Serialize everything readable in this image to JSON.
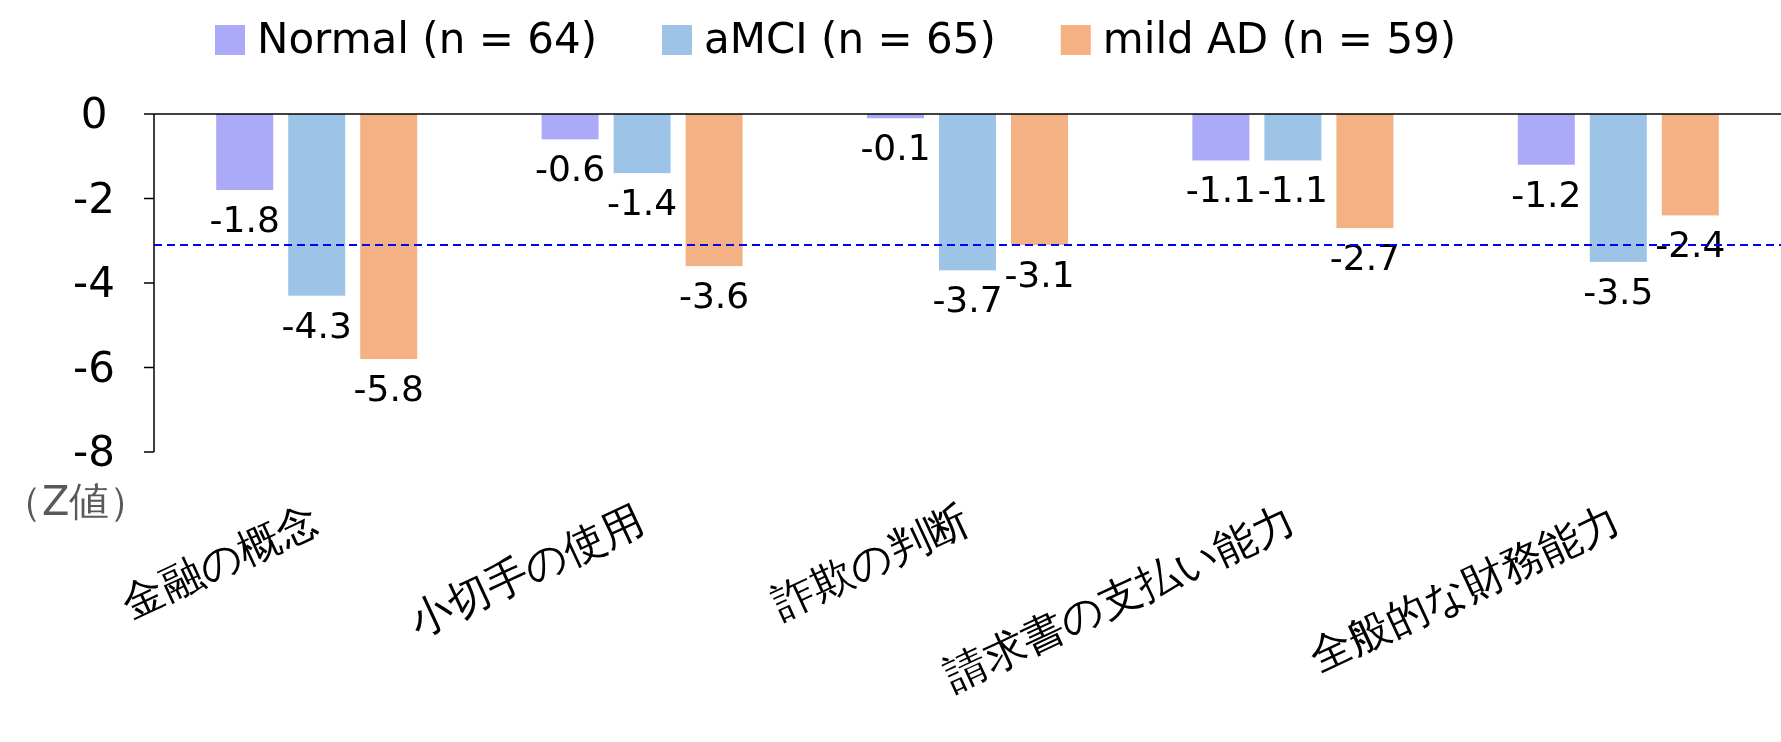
{
  "chart_data": {
    "type": "bar",
    "ylabel": "（Z値）",
    "categories": [
      "金融の概念",
      "小切手の使用",
      "詐欺の判断",
      "請求書の支払い能力",
      "全般的な財務能力"
    ],
    "series": [
      {
        "name": "Normal (n = 64)",
        "color": "#aaaaf8",
        "values": [
          -1.8,
          -0.6,
          -0.1,
          -1.1,
          -1.2
        ]
      },
      {
        "name": "aMCI (n = 65)",
        "color": "#9dc3e6",
        "values": [
          -4.3,
          -1.4,
          -3.7,
          -1.1,
          -3.5
        ]
      },
      {
        "name": "mild AD (n = 59)",
        "color": "#f4b183",
        "values": [
          -5.8,
          -3.6,
          -3.1,
          -2.7,
          -2.4
        ]
      }
    ],
    "ylim": [
      -8,
      0
    ],
    "yticks": [
      0,
      -2,
      -4,
      -6,
      -8
    ],
    "ref_lines": [
      {
        "axis": "y",
        "value": -3.1,
        "color": "#0000ff",
        "line_style": "dashed"
      }
    ],
    "data_labels": true,
    "legend": "top",
    "grid": false
  }
}
